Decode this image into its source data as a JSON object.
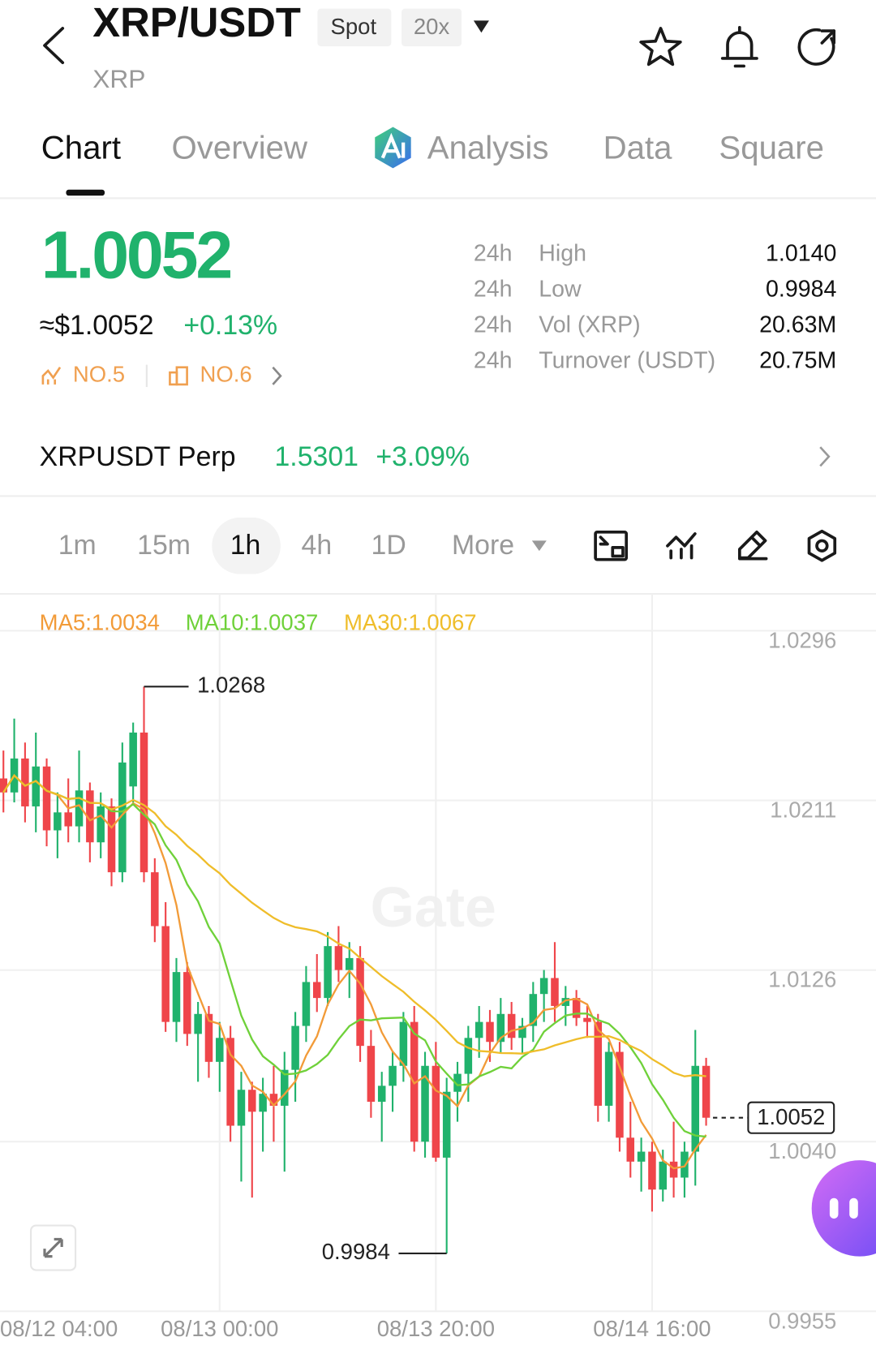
{
  "header": {
    "symbol": "XRP/USDT",
    "market": "Spot",
    "leverage": "20x",
    "base": "XRP"
  },
  "tabs": [
    "Chart",
    "Overview",
    "Analysis",
    "Data",
    "Square"
  ],
  "price": {
    "last": "1.0052",
    "usd": "≈$1.0052",
    "change": "+0.13%",
    "rank_1": "NO.5",
    "rank_2": "NO.6"
  },
  "stats": [
    {
      "period": "24h",
      "label": "High",
      "value": "1.0140"
    },
    {
      "period": "24h",
      "label": "Low",
      "value": "0.9984"
    },
    {
      "period": "24h",
      "label": "Vol (XRP)",
      "value": "20.63M"
    },
    {
      "period": "24h",
      "label": "Turnover (USDT)",
      "value": "20.75M"
    }
  ],
  "perp": {
    "name": "XRPUSDT Perp",
    "price": "1.5301",
    "change": "+3.09%"
  },
  "intervals": [
    "1m",
    "15m",
    "1h",
    "4h",
    "1D",
    "More"
  ],
  "chart_data": {
    "type": "candlestick",
    "watermark": "Gate",
    "up_color": "#20b26c",
    "down_color": "#ef454a",
    "grid": true,
    "moving_averages": [
      {
        "label": "MA5:1.0034",
        "color": "#f29b38"
      },
      {
        "label": "MA10:1.0037",
        "color": "#6fd13a"
      },
      {
        "label": "MA30:1.0067",
        "color": "#efbd2a"
      }
    ],
    "ylim": [
      0.9955,
      1.0296
    ],
    "yticks": [
      1.0296,
      1.0211,
      1.0126,
      {
        "value": 1.004,
        "label": "1.0040"
      },
      0.9955
    ],
    "categories": [
      "08/12 04:00",
      null,
      null,
      null,
      null,
      null,
      null,
      null,
      null,
      null,
      null,
      null,
      null,
      null,
      null,
      null,
      null,
      null,
      null,
      null,
      "08/13 00:00",
      null,
      null,
      null,
      null,
      null,
      null,
      null,
      null,
      null,
      null,
      null,
      null,
      null,
      null,
      null,
      null,
      null,
      null,
      null,
      "08/13 20:00",
      null,
      null,
      null,
      null,
      null,
      null,
      null,
      null,
      null,
      null,
      null,
      null,
      null,
      null,
      null,
      null,
      null,
      null,
      null,
      "08/14 16:00",
      null,
      null,
      null,
      null,
      null
    ],
    "open": [
      1.0222,
      1.0215,
      1.0232,
      1.0208,
      1.0228,
      1.0196,
      1.0205,
      1.0198,
      1.0216,
      1.019,
      1.0208,
      1.0175,
      1.0218,
      1.0245,
      1.0175,
      1.0148,
      1.01,
      1.0125,
      1.0094,
      1.0104,
      1.008,
      1.0092,
      1.0048,
      1.0066,
      1.0055,
      1.0064,
      1.0058,
      1.0076,
      1.0098,
      1.012,
      1.0112,
      1.0138,
      1.0126,
      1.0132,
      1.0088,
      1.006,
      1.0068,
      1.0078,
      1.01,
      1.004,
      1.0078,
      1.0032,
      1.0065,
      1.0074,
      1.0092,
      1.01,
      1.009,
      1.0104,
      1.0092,
      1.0098,
      1.0114,
      1.0122,
      1.0108,
      1.0112,
      1.0102,
      1.01,
      1.0058,
      1.0085,
      1.0042,
      1.003,
      1.0035,
      1.0016,
      1.003,
      1.0022,
      1.0035,
      1.0078
    ],
    "high": [
      1.0236,
      1.0252,
      1.024,
      1.0245,
      1.0232,
      1.0215,
      1.0222,
      1.0236,
      1.022,
      1.0215,
      1.0212,
      1.024,
      1.025,
      1.0268,
      1.0182,
      1.016,
      1.0132,
      1.013,
      1.011,
      1.0108,
      1.01,
      1.0098,
      1.0075,
      1.007,
      1.0072,
      1.0078,
      1.0085,
      1.0105,
      1.0128,
      1.0134,
      1.0145,
      1.0148,
      1.014,
      1.0138,
      1.0096,
      1.0075,
      1.0085,
      1.0105,
      1.0108,
      1.0085,
      1.009,
      1.0072,
      1.008,
      1.0098,
      1.0108,
      1.0106,
      1.0112,
      1.011,
      1.0102,
      1.012,
      1.0126,
      1.014,
      1.0118,
      1.0116,
      1.0108,
      1.0104,
      1.009,
      1.009,
      1.006,
      1.0042,
      1.004,
      1.0036,
      1.005,
      1.004,
      1.0096,
      1.0082
    ],
    "low": [
      1.0205,
      1.021,
      1.02,
      1.0195,
      1.0188,
      1.0182,
      1.019,
      1.019,
      1.018,
      1.0182,
      1.0168,
      1.017,
      1.021,
      1.017,
      1.014,
      1.0095,
      1.009,
      1.0088,
      1.007,
      1.0072,
      1.0065,
      1.004,
      1.002,
      1.0012,
      1.0035,
      1.004,
      1.0025,
      1.006,
      1.009,
      1.0105,
      1.0108,
      1.012,
      1.0112,
      1.008,
      1.0052,
      1.004,
      1.0055,
      1.007,
      1.0035,
      1.0032,
      1.003,
      0.9984,
      1.005,
      1.006,
      1.0082,
      1.008,
      1.0084,
      1.0086,
      1.0084,
      1.009,
      1.01,
      1.01,
      1.0098,
      1.0098,
      1.0092,
      1.005,
      1.005,
      1.0035,
      1.0022,
      1.0015,
      1.0005,
      1.001,
      1.0012,
      1.0012,
      1.0018,
      1.0048
    ],
    "close": [
      1.0215,
      1.0232,
      1.0208,
      1.0228,
      1.0196,
      1.0205,
      1.0198,
      1.0216,
      1.019,
      1.0208,
      1.0175,
      1.023,
      1.0245,
      1.0175,
      1.0148,
      1.01,
      1.0125,
      1.0094,
      1.0104,
      1.008,
      1.0092,
      1.0048,
      1.0066,
      1.0055,
      1.0064,
      1.0058,
      1.0076,
      1.0098,
      1.012,
      1.0112,
      1.0138,
      1.0126,
      1.0132,
      1.0088,
      1.006,
      1.0068,
      1.0078,
      1.01,
      1.004,
      1.0078,
      1.0032,
      1.0065,
      1.0074,
      1.0092,
      1.01,
      1.009,
      1.0104,
      1.0092,
      1.0098,
      1.0114,
      1.0122,
      1.0108,
      1.0112,
      1.0102,
      1.01,
      1.0058,
      1.0085,
      1.0042,
      1.003,
      1.0035,
      1.0016,
      1.003,
      1.0022,
      1.0035,
      1.0078,
      1.0052
    ]
  }
}
